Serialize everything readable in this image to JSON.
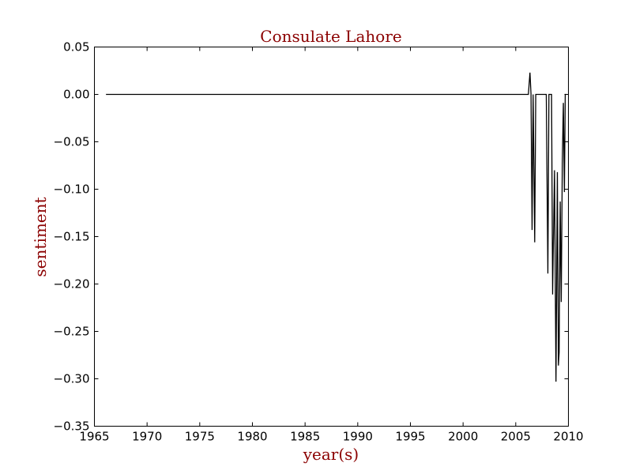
{
  "chart_data": {
    "type": "line",
    "title": "Consulate Lahore",
    "xlabel": "year(s)",
    "ylabel": "sentiment",
    "xlim": [
      1965,
      2010
    ],
    "ylim": [
      -0.35,
      0.05
    ],
    "x_ticks": [
      1965,
      1970,
      1975,
      1980,
      1985,
      1990,
      1995,
      2000,
      2005,
      2010
    ],
    "y_ticks": [
      0.05,
      0.0,
      -0.05,
      -0.1,
      -0.15,
      -0.2,
      -0.25,
      -0.3,
      -0.35
    ],
    "x_tick_labels": [
      "1965",
      "1970",
      "1975",
      "1980",
      "1985",
      "1990",
      "1995",
      "2000",
      "2005",
      "2010"
    ],
    "y_tick_labels": [
      "0.05",
      "0.00",
      "−0.05",
      "−0.10",
      "−0.15",
      "−0.20",
      "−0.25",
      "−0.30",
      "−0.35"
    ],
    "grid": false,
    "colors": {
      "title": "#8b0000",
      "axis_label": "#8b0000",
      "line": "#000000"
    },
    "series": [
      {
        "values": [
          [
            1966.1,
            0.0
          ],
          [
            2006.2,
            0.0
          ],
          [
            2006.35,
            0.023
          ],
          [
            2006.45,
            0.0
          ],
          [
            2006.55,
            -0.143
          ],
          [
            2006.65,
            0.0
          ],
          [
            2006.8,
            -0.156
          ],
          [
            2006.9,
            0.0
          ],
          [
            2007.9,
            0.0
          ],
          [
            2008.05,
            -0.189
          ],
          [
            2008.15,
            0.0
          ],
          [
            2008.4,
            0.0
          ],
          [
            2008.5,
            -0.211
          ],
          [
            2008.57,
            -0.158
          ],
          [
            2008.68,
            -0.08
          ],
          [
            2008.82,
            -0.303
          ],
          [
            2008.95,
            -0.082
          ],
          [
            2009.05,
            -0.286
          ],
          [
            2009.12,
            -0.272
          ],
          [
            2009.22,
            -0.113
          ],
          [
            2009.32,
            -0.219
          ],
          [
            2009.42,
            -0.073
          ],
          [
            2009.52,
            -0.009
          ],
          [
            2009.62,
            -0.103
          ],
          [
            2009.7,
            0.0
          ],
          [
            2009.8,
            0.0
          ]
        ]
      }
    ]
  }
}
